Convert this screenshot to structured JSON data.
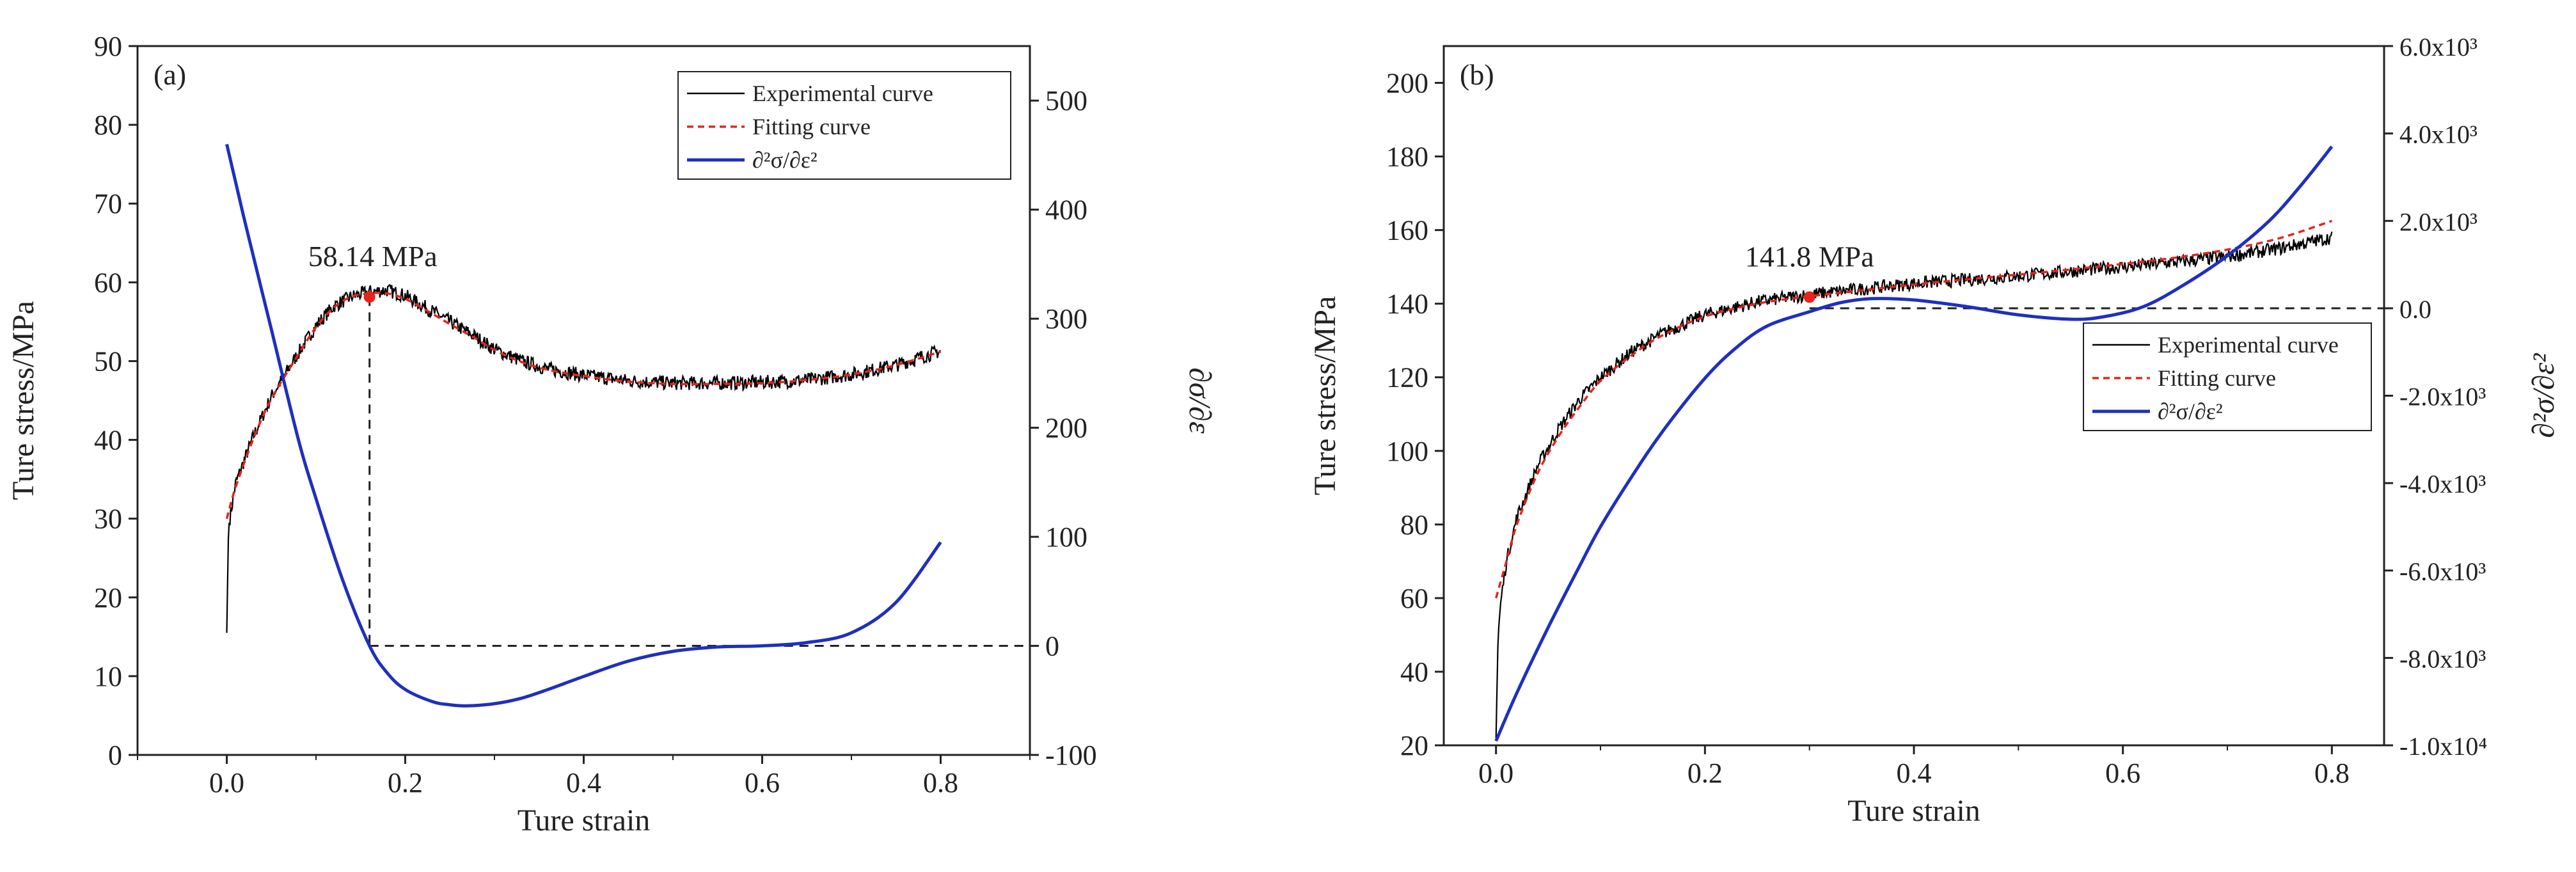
{
  "chart_data": [
    {
      "type": "line",
      "panel_label": "(a)",
      "xlabel": "Ture strain",
      "ylabel": "Ture stress/MPa",
      "y2label": "∂σ/∂ε",
      "xlim": [
        -0.1,
        0.9
      ],
      "ylim": [
        0,
        90
      ],
      "y2lim": [
        -100,
        550
      ],
      "xticks": [
        "0.0",
        "0.2",
        "0.4",
        "0.6",
        "0.8"
      ],
      "xtick_values": [
        0.0,
        0.2,
        0.4,
        0.6,
        0.8
      ],
      "yticks": [
        "0",
        "10",
        "20",
        "30",
        "40",
        "50",
        "60",
        "70",
        "80",
        "90"
      ],
      "ytick_values": [
        0,
        10,
        20,
        30,
        40,
        50,
        60,
        70,
        80,
        90
      ],
      "y2ticks": [
        "-100",
        "0",
        "100",
        "200",
        "300",
        "400",
        "500"
      ],
      "y2tick_values": [
        -100,
        0,
        100,
        200,
        300,
        400,
        500
      ],
      "annotation": {
        "text": "58.14 MPa",
        "x": 0.16,
        "y": 58.14
      },
      "zero_line_y2": 0,
      "legend": [
        "Experimental curve",
        "Fitting curve",
        "∂²σ/∂ε²"
      ],
      "series": [
        {
          "name": "Experimental curve",
          "color": "#000000",
          "axis": "left",
          "noise": 0.9,
          "x": [
            0.0,
            0.002,
            0.01,
            0.03,
            0.05,
            0.08,
            0.1,
            0.12,
            0.14,
            0.16,
            0.18,
            0.2,
            0.22,
            0.25,
            0.28,
            0.3,
            0.33,
            0.36,
            0.4,
            0.45,
            0.5,
            0.55,
            0.6,
            0.65,
            0.7,
            0.75,
            0.8
          ],
          "y": [
            15.5,
            29.0,
            34.5,
            40.5,
            45.5,
            51.0,
            54.5,
            57.0,
            58.2,
            58.8,
            59.0,
            58.3,
            57.0,
            55.0,
            53.0,
            51.5,
            50.0,
            49.0,
            48.2,
            47.5,
            47.2,
            47.2,
            47.3,
            47.6,
            48.3,
            49.5,
            51.3
          ]
        },
        {
          "name": "Fitting curve",
          "color": "#e8231a",
          "axis": "left",
          "x": [
            0.0,
            0.01,
            0.03,
            0.05,
            0.08,
            0.1,
            0.12,
            0.14,
            0.16,
            0.18,
            0.2,
            0.22,
            0.25,
            0.28,
            0.3,
            0.33,
            0.36,
            0.4,
            0.45,
            0.5,
            0.55,
            0.6,
            0.65,
            0.7,
            0.75,
            0.8
          ],
          "y": [
            30.0,
            34.0,
            40.2,
            45.2,
            50.8,
            54.3,
            56.8,
            58.2,
            58.6,
            58.6,
            57.9,
            56.7,
            54.7,
            52.8,
            51.4,
            49.9,
            48.9,
            48.1,
            47.4,
            47.1,
            47.1,
            47.2,
            47.6,
            48.3,
            49.5,
            51.2
          ]
        },
        {
          "name": "∂²σ/∂ε²",
          "color": "#1f2fbf",
          "axis": "right",
          "x": [
            0.0,
            0.02,
            0.05,
            0.08,
            0.1,
            0.13,
            0.16,
            0.18,
            0.2,
            0.23,
            0.25,
            0.27,
            0.3,
            0.33,
            0.36,
            0.4,
            0.45,
            0.5,
            0.55,
            0.6,
            0.65,
            0.7,
            0.75,
            0.8
          ],
          "y": [
            460,
            390,
            290,
            190,
            135,
            60,
            0,
            -25,
            -40,
            -51,
            -54,
            -55,
            -53,
            -48,
            -40,
            -28,
            -14,
            -5,
            -1,
            0,
            3,
            12,
            40,
            95
          ]
        }
      ]
    },
    {
      "type": "line",
      "panel_label": "(b)",
      "xlabel": "Ture strain",
      "ylabel": "Ture stress/MPa",
      "y2label": "∂²σ/∂ε²",
      "xlim": [
        -0.05,
        0.85
      ],
      "ylim": [
        20,
        210
      ],
      "y2lim": [
        -10000,
        6000
      ],
      "xticks": [
        "0.0",
        "0.2",
        "0.4",
        "0.6",
        "0.8"
      ],
      "xtick_values": [
        0.0,
        0.2,
        0.4,
        0.6,
        0.8
      ],
      "yticks": [
        "20",
        "40",
        "60",
        "80",
        "100",
        "120",
        "140",
        "160",
        "180",
        "200"
      ],
      "ytick_values": [
        20,
        40,
        60,
        80,
        100,
        120,
        140,
        160,
        180,
        200
      ],
      "y2ticks": [
        "-1.0x10⁴",
        "-8.0x10³",
        "-6.0x10³",
        "-4.0x10³",
        "-2.0x10³",
        "0.0",
        "2.0x10³",
        "4.0x10³",
        "6.0x10³"
      ],
      "y2tick_values": [
        -10000,
        -8000,
        -6000,
        -4000,
        -2000,
        0,
        2000,
        4000,
        6000
      ],
      "annotation": {
        "text": "141.8 MPa",
        "x": 0.3,
        "y": 141.8
      },
      "zero_line_y2": 0,
      "legend": [
        "Experimental curve",
        "Fitting curve",
        "∂²σ/∂ε²"
      ],
      "series": [
        {
          "name": "Experimental curve",
          "color": "#000000",
          "axis": "left",
          "noise": 1.8,
          "x": [
            0.0,
            0.002,
            0.005,
            0.01,
            0.02,
            0.04,
            0.06,
            0.08,
            0.1,
            0.13,
            0.16,
            0.2,
            0.25,
            0.3,
            0.35,
            0.4,
            0.45,
            0.5,
            0.55,
            0.6,
            0.65,
            0.7,
            0.75,
            0.8
          ],
          "y": [
            22,
            50,
            60,
            70,
            82,
            96,
            106,
            114,
            120,
            127,
            132,
            137,
            140.5,
            142.5,
            144,
            145.5,
            146.5,
            147.5,
            148.8,
            150,
            151.3,
            152.8,
            155,
            158
          ]
        },
        {
          "name": "Fitting curve",
          "color": "#e8231a",
          "axis": "left",
          "x": [
            0.0,
            0.01,
            0.02,
            0.04,
            0.06,
            0.08,
            0.1,
            0.13,
            0.16,
            0.2,
            0.25,
            0.3,
            0.35,
            0.4,
            0.45,
            0.5,
            0.55,
            0.6,
            0.65,
            0.7,
            0.75,
            0.8
          ],
          "y": [
            60,
            70,
            80,
            94,
            104,
            112,
            119,
            126,
            131.5,
            136.5,
            140,
            142,
            143.6,
            145.2,
            146.6,
            147.9,
            149.3,
            150.8,
            152.5,
            154.7,
            157.8,
            162.5
          ]
        },
        {
          "name": "∂²σ/∂ε²",
          "color": "#1f2fbf",
          "axis": "right",
          "x": [
            0.0,
            0.02,
            0.05,
            0.08,
            0.1,
            0.13,
            0.16,
            0.2,
            0.23,
            0.26,
            0.3,
            0.33,
            0.36,
            0.4,
            0.45,
            0.5,
            0.55,
            0.58,
            0.62,
            0.66,
            0.7,
            0.74,
            0.77,
            0.8
          ],
          "y": [
            -9900,
            -8800,
            -7300,
            -5900,
            -5000,
            -3850,
            -2800,
            -1600,
            -900,
            -400,
            -80,
            130,
            220,
            190,
            40,
            -150,
            -250,
            -200,
            40,
            560,
            1200,
            2000,
            2800,
            3700
          ]
        }
      ]
    }
  ]
}
